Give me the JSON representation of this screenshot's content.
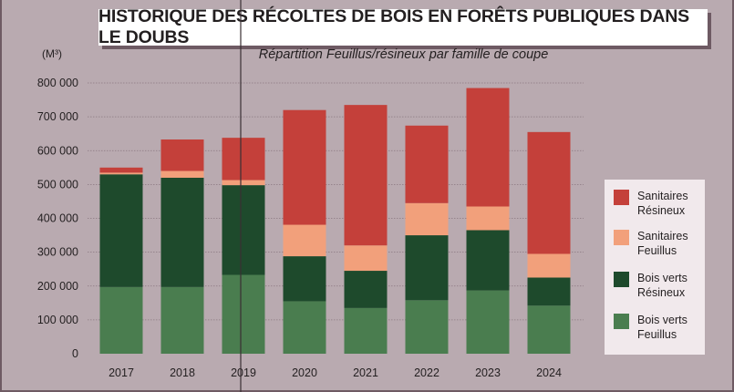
{
  "title": "HISTORIQUE DES RÉCOLTES DE BOIS EN FORÊTS PUBLIQUES DANS LE DOUBS",
  "subtitle": "Répartition Feuillus/résineux par famille de coupe",
  "unit_label": "(M³)",
  "colors": {
    "bois_verts_feuillus": "#4a7d4f",
    "bois_verts_resineux": "#1e4a2c",
    "sanitaires_feuillus": "#f2a07b",
    "sanitaires_resineux": "#c4403a",
    "grid": "#8a7880",
    "background": "#b9aab0"
  },
  "chart_data": {
    "type": "bar",
    "stacked": true,
    "title": "HISTORIQUE DES RÉCOLTES DE BOIS EN FORÊTS PUBLIQUES DANS LE DOUBS",
    "subtitle": "Répartition Feuillus/résineux par famille de coupe",
    "ylabel": "(M³)",
    "xlabel": "",
    "ylim": [
      0,
      800000
    ],
    "ytick_values": [
      0,
      100000,
      200000,
      300000,
      400000,
      500000,
      600000,
      700000,
      800000
    ],
    "ytick_labels": [
      "0",
      "100 000",
      "200 000",
      "300 000",
      "400 000",
      "500 000",
      "600 000",
      "700 000",
      "800 000"
    ],
    "grid": true,
    "legend_position": "right",
    "categories": [
      "2017",
      "2018",
      "2019",
      "2020",
      "2021",
      "2022",
      "2023",
      "2024"
    ],
    "series": [
      {
        "key": "bois_verts_feuillus",
        "name": "Bois verts Feuillus",
        "values": [
          197000,
          197000,
          233000,
          155000,
          135000,
          158000,
          187000,
          142000
        ]
      },
      {
        "key": "bois_verts_resineux",
        "name": "Bois verts Résineux",
        "values": [
          333000,
          323000,
          265000,
          133000,
          110000,
          192000,
          178000,
          83000
        ]
      },
      {
        "key": "sanitaires_feuillus",
        "name": "Sanitaires Feuillus",
        "values": [
          5000,
          20000,
          15000,
          93000,
          75000,
          95000,
          70000,
          70000
        ]
      },
      {
        "key": "sanitaires_resineux",
        "name": "Sanitaires Résineux",
        "values": [
          15000,
          93000,
          125000,
          339000,
          415000,
          229000,
          350000,
          360000
        ]
      }
    ]
  },
  "legend": [
    {
      "label": "Sanitaires Résineux",
      "key": "sanitaires_resineux"
    },
    {
      "label": "Sanitaires Feuillus",
      "key": "sanitaires_feuillus"
    },
    {
      "label": "Bois verts Résineux",
      "key": "bois_verts_resineux"
    },
    {
      "label": "Bois verts Feuillus",
      "key": "bois_verts_feuillus"
    }
  ]
}
